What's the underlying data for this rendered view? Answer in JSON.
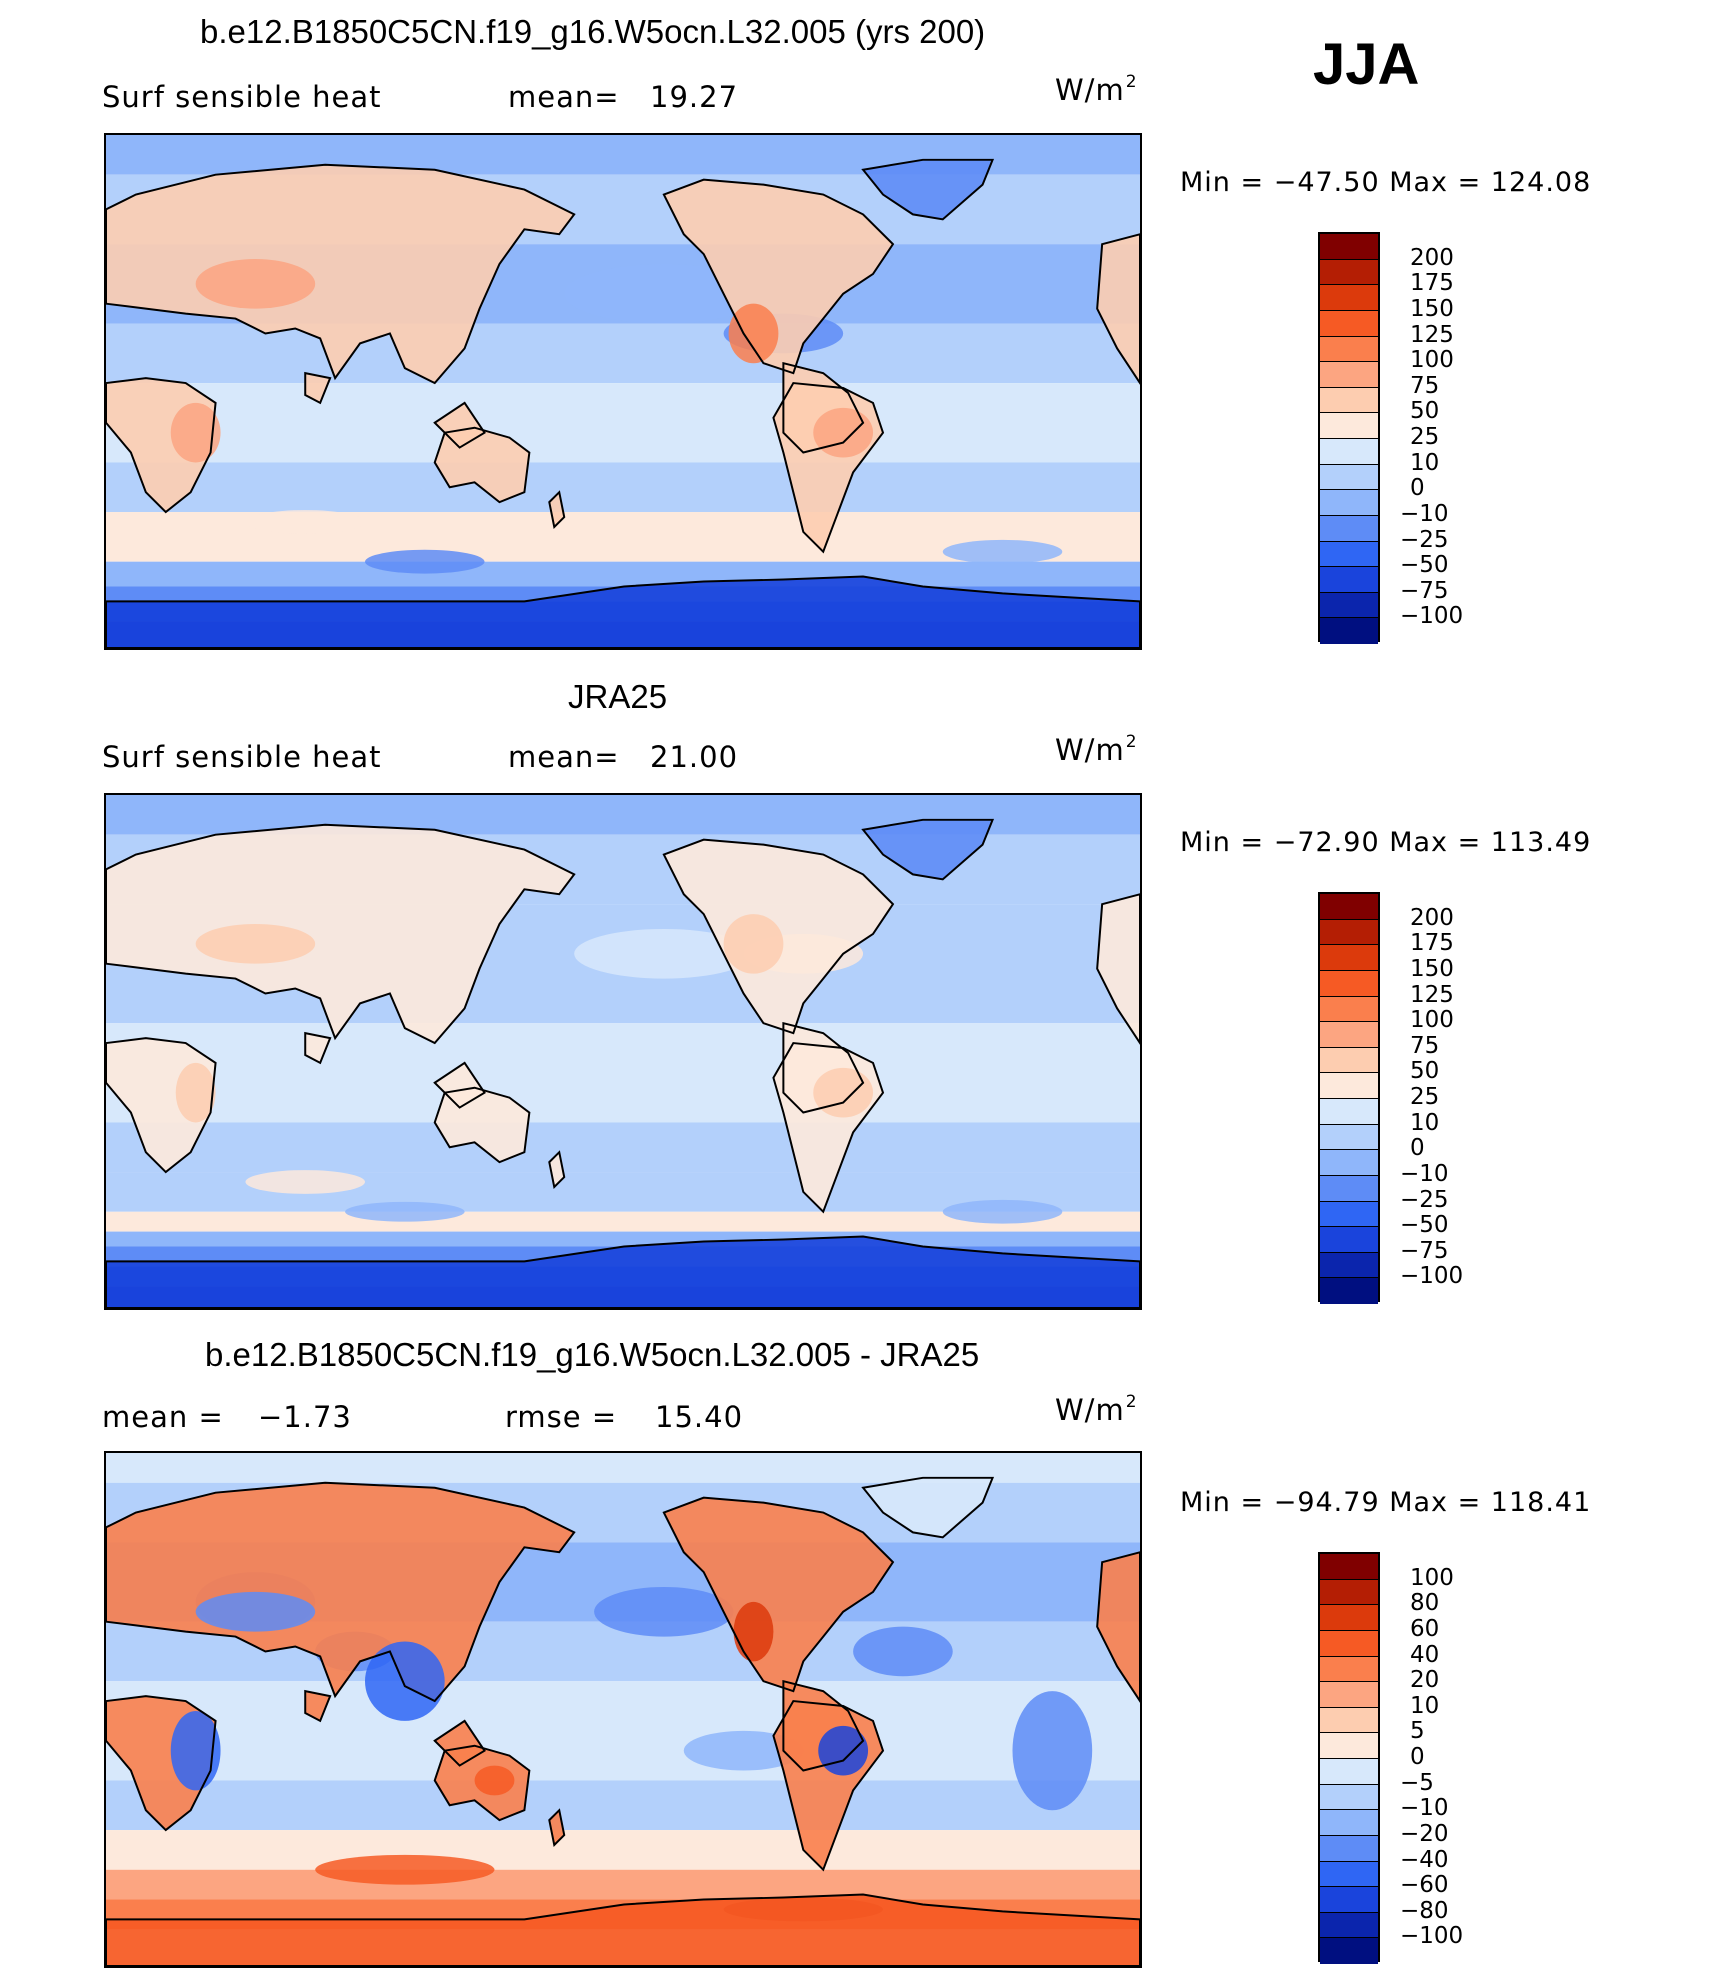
{
  "season": "JJA",
  "panels": [
    {
      "title": "b.e12.B1850C5CN.f19_g16.W5ocn.L32.005 (yrs 200)",
      "left_label": "Surf  sensible  heat",
      "stat_label": "mean=",
      "stat_value": "19.27",
      "units_base": "W/m",
      "units_exp": "2",
      "min_max": "Min  =  −47.50  Max  =  124.08",
      "colorbar": {
        "labels": [
          "200",
          "175",
          "150",
          "125",
          "100",
          "75",
          "50",
          "25",
          "10",
          "0",
          "−10",
          "−25",
          "−50",
          "−75",
          "−100"
        ],
        "colors": [
          "#800000",
          "#b41e04",
          "#dc3a0c",
          "#f65a24",
          "#fa7f4d",
          "#fca581",
          "#fdcdb0",
          "#fde9dc",
          "#d7e8fb",
          "#b3d0fb",
          "#8fb6fa",
          "#5e8cf6",
          "#2f66f4",
          "#1a44dc",
          "#0b25ad",
          "#000f80"
        ]
      },
      "map_style": "model"
    },
    {
      "title": "JRA25",
      "left_label": "Surf  sensible  heat",
      "stat_label": "mean=",
      "stat_value": "21.00",
      "units_base": "W/m",
      "units_exp": "2",
      "min_max": "Min  =  −72.90  Max  =  113.49",
      "colorbar": {
        "labels": [
          "200",
          "175",
          "150",
          "125",
          "100",
          "75",
          "50",
          "25",
          "10",
          "0",
          "−10",
          "−25",
          "−50",
          "−75",
          "−100"
        ],
        "colors": [
          "#800000",
          "#b41e04",
          "#dc3a0c",
          "#f65a24",
          "#fa7f4d",
          "#fca581",
          "#fdcdb0",
          "#fde9dc",
          "#d7e8fb",
          "#b3d0fb",
          "#8fb6fa",
          "#5e8cf6",
          "#2f66f4",
          "#1a44dc",
          "#0b25ad",
          "#000f80"
        ]
      },
      "map_style": "obs"
    },
    {
      "title": "b.e12.B1850C5CN.f19_g16.W5ocn.L32.005 - JRA25",
      "left_label": "mean  =",
      "left_value": "−1.73",
      "stat_label": "rmse  =",
      "stat_value": "15.40",
      "units_base": "W/m",
      "units_exp": "2",
      "min_max": "Min  =  −94.79  Max  =  118.41",
      "colorbar": {
        "labels": [
          "100",
          "80",
          "60",
          "40",
          "20",
          "10",
          "5",
          "0",
          "−5",
          "−10",
          "−20",
          "−40",
          "−60",
          "−80",
          "−100"
        ],
        "colors": [
          "#800000",
          "#b41e04",
          "#dc3a0c",
          "#f65a24",
          "#fa7f4d",
          "#fca581",
          "#fdcdb0",
          "#fde9dc",
          "#d7e8fb",
          "#b3d0fb",
          "#8fb6fa",
          "#5e8cf6",
          "#2f66f4",
          "#1a44dc",
          "#0b25ad",
          "#000f80"
        ]
      },
      "map_style": "diff"
    }
  ]
}
